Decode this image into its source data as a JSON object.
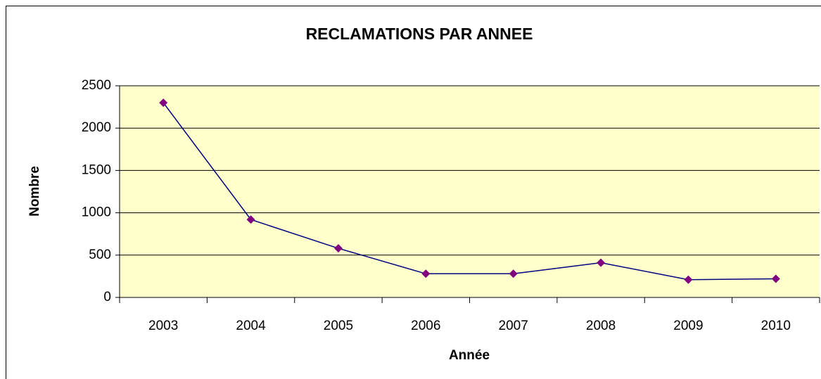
{
  "chart_data": {
    "type": "line",
    "title": "RECLAMATIONS PAR ANNEE",
    "x_label": "Année",
    "y_label": "Nombre",
    "categories": [
      "2003",
      "2004",
      "2005",
      "2006",
      "2007",
      "2008",
      "2009",
      "2010"
    ],
    "series": [
      {
        "name": "Nombre",
        "color": "#000080",
        "marker_color": "#800080",
        "values": [
          2300,
          920,
          580,
          280,
          280,
          410,
          210,
          220
        ]
      }
    ],
    "ylim": [
      0,
      2500
    ],
    "yticks": [
      0,
      500,
      1000,
      1500,
      2000,
      2500
    ],
    "grid": true,
    "plot_background": "#ffffcc"
  }
}
